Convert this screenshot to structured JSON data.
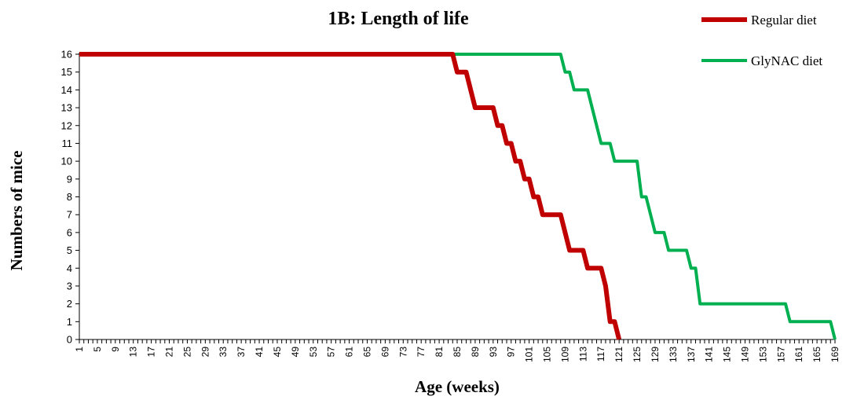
{
  "chart_data": {
    "type": "line",
    "title": "1B: Length of life",
    "xlabel": "Age (weeks)",
    "ylabel": "Numbers of mice",
    "xlim": [
      1,
      169
    ],
    "ylim": [
      0,
      16
    ],
    "x_ticks": [
      1,
      5,
      9,
      13,
      17,
      21,
      25,
      29,
      33,
      37,
      41,
      45,
      49,
      53,
      57,
      61,
      65,
      69,
      73,
      77,
      81,
      85,
      89,
      93,
      97,
      101,
      105,
      109,
      113,
      117,
      121,
      125,
      129,
      133,
      137,
      141,
      145,
      149,
      153,
      157,
      161,
      165,
      169
    ],
    "y_ticks": [
      0,
      1,
      2,
      3,
      4,
      5,
      6,
      7,
      8,
      9,
      10,
      11,
      12,
      13,
      14,
      15,
      16
    ],
    "grid": false,
    "legend_position": "top-right",
    "series": [
      {
        "name": "Regular diet",
        "color": "#c00000",
        "points": [
          [
            1,
            16
          ],
          [
            84,
            16
          ],
          [
            85,
            15
          ],
          [
            87,
            15
          ],
          [
            89,
            13
          ],
          [
            93,
            13
          ],
          [
            94,
            12
          ],
          [
            95,
            12
          ],
          [
            96,
            11
          ],
          [
            97,
            11
          ],
          [
            98,
            10
          ],
          [
            99,
            10
          ],
          [
            100,
            9
          ],
          [
            101,
            9
          ],
          [
            102,
            8
          ],
          [
            103,
            8
          ],
          [
            104,
            7
          ],
          [
            108,
            7
          ],
          [
            110,
            5
          ],
          [
            113,
            5
          ],
          [
            114,
            4
          ],
          [
            117,
            4
          ],
          [
            118,
            3
          ],
          [
            119,
            1
          ],
          [
            120,
            1
          ],
          [
            121,
            0
          ]
        ]
      },
      {
        "name": "GlyNAC diet",
        "color": "#00b050",
        "points": [
          [
            1,
            16
          ],
          [
            108,
            16
          ],
          [
            109,
            15
          ],
          [
            110,
            15
          ],
          [
            111,
            14
          ],
          [
            114,
            14
          ],
          [
            116,
            12
          ],
          [
            117,
            11
          ],
          [
            119,
            11
          ],
          [
            120,
            10
          ],
          [
            125,
            10
          ],
          [
            126,
            8
          ],
          [
            127,
            8
          ],
          [
            128,
            7
          ],
          [
            129,
            6
          ],
          [
            131,
            6
          ],
          [
            132,
            5
          ],
          [
            136,
            5
          ],
          [
            137,
            4
          ],
          [
            138,
            4
          ],
          [
            139,
            2
          ],
          [
            158,
            2
          ],
          [
            159,
            1
          ],
          [
            168,
            1
          ],
          [
            169,
            0
          ]
        ]
      }
    ]
  }
}
